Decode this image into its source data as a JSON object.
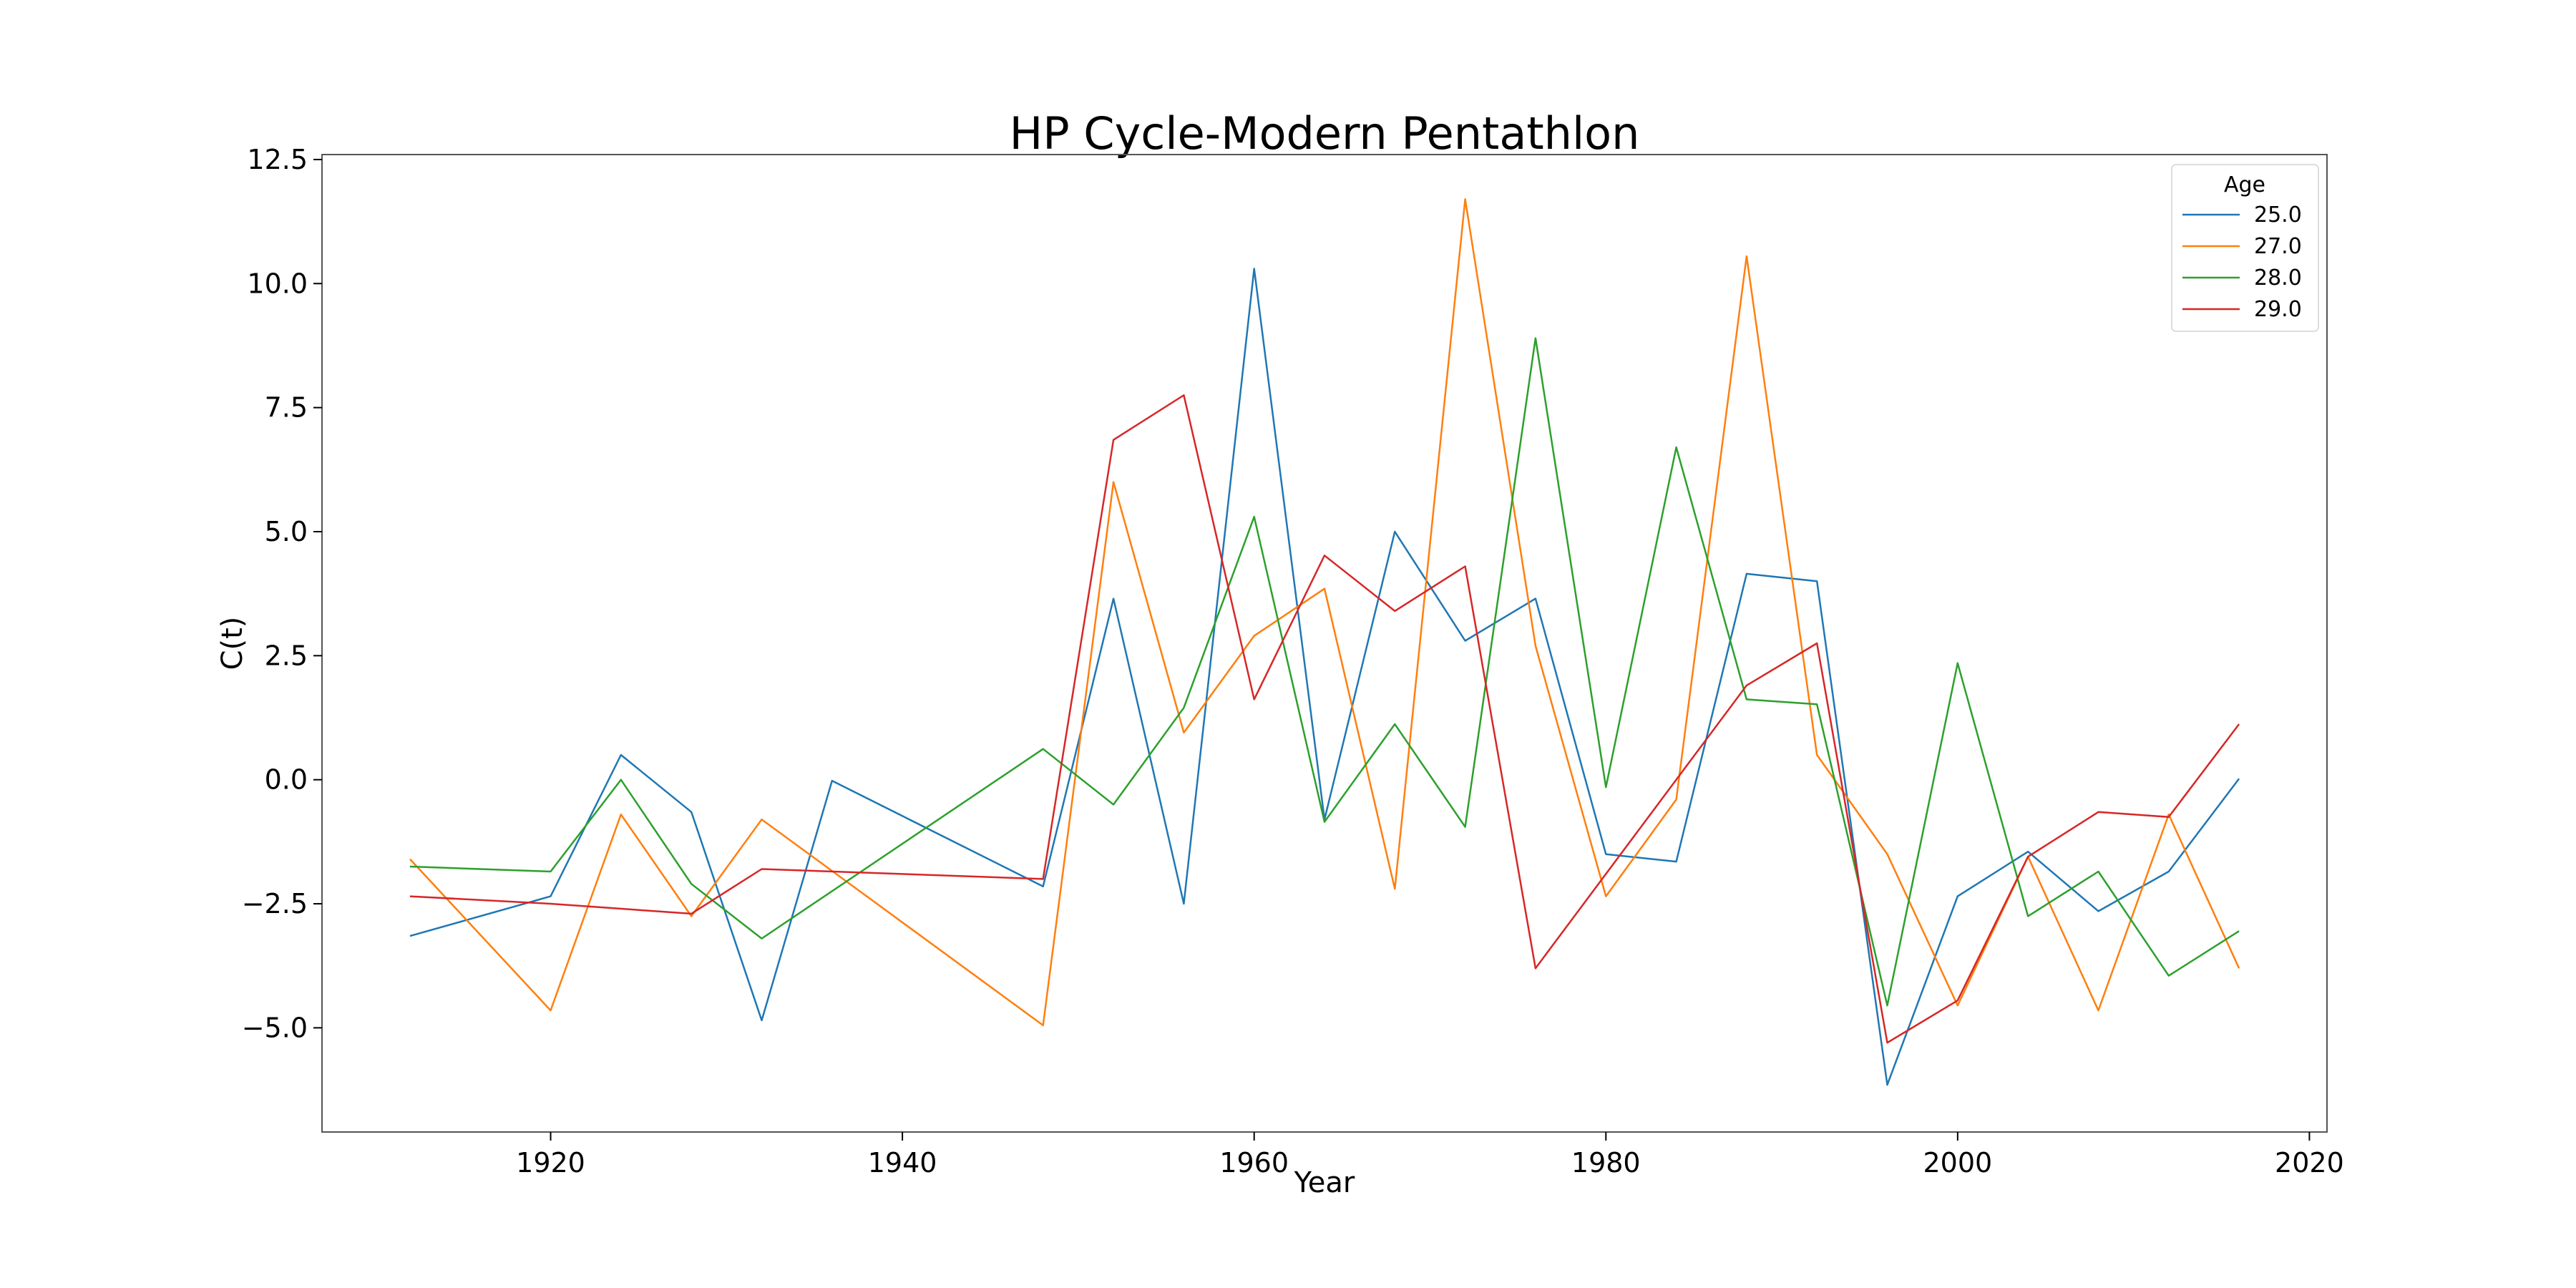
{
  "chart_data": {
    "type": "line",
    "title": "HP Cycle-Modern Pentathlon",
    "xlabel": "Year",
    "ylabel": "C(t)",
    "xlim": [
      1907,
      2021
    ],
    "ylim": [
      -7.1,
      12.6
    ],
    "xticks": [
      1920,
      1940,
      1960,
      1980,
      2000,
      2020
    ],
    "yticks": [
      -5.0,
      -2.5,
      0.0,
      2.5,
      5.0,
      7.5,
      10.0,
      12.5
    ],
    "xtick_labels": [
      "1920",
      "1940",
      "1960",
      "1980",
      "2000",
      "2020"
    ],
    "ytick_labels": [
      "−5.0",
      "−2.5",
      "0.0",
      "2.5",
      "5.0",
      "7.5",
      "10.0",
      "12.5"
    ],
    "grid": false,
    "legend": {
      "title": "Age",
      "placement": "top-right"
    },
    "x": [
      1912,
      1920,
      1924,
      1928,
      1932,
      1936,
      1948,
      1952,
      1956,
      1960,
      1964,
      1968,
      1972,
      1976,
      1980,
      1984,
      1988,
      1992,
      1996,
      2000,
      2004,
      2008,
      2012,
      2016
    ],
    "series": [
      {
        "name": "25.0",
        "color": "#1f77b4",
        "values": [
          -3.15,
          -2.35,
          0.5,
          -0.65,
          -4.85,
          -0.02,
          -2.15,
          3.65,
          -2.5,
          10.3,
          -0.8,
          5.0,
          2.8,
          3.65,
          -1.5,
          -1.65,
          4.15,
          4.0,
          -6.15,
          -2.35,
          -1.45,
          -2.65,
          -1.85,
          0.02
        ]
      },
      {
        "name": "27.0",
        "color": "#ff7f0e",
        "values": [
          -1.6,
          -4.65,
          -0.7,
          -2.75,
          -0.8,
          null,
          -4.95,
          6.0,
          0.95,
          2.9,
          3.85,
          -2.2,
          11.7,
          2.7,
          -2.35,
          -0.4,
          10.55,
          0.5,
          -1.5,
          -4.55,
          -1.55,
          -4.65,
          -0.7,
          -3.8
        ]
      },
      {
        "name": "28.0",
        "color": "#2ca02c",
        "values": [
          -1.75,
          -1.85,
          0.0,
          -2.1,
          -3.2,
          null,
          0.62,
          -0.5,
          1.45,
          5.3,
          -0.85,
          1.12,
          -0.95,
          8.9,
          -0.15,
          6.7,
          1.62,
          1.52,
          -4.55,
          2.35,
          -2.75,
          -1.85,
          -3.95,
          -3.05
        ]
      },
      {
        "name": "29.0",
        "color": "#d62728",
        "values": [
          -2.35,
          -2.5,
          null,
          -2.7,
          -1.8,
          null,
          -2.0,
          6.85,
          7.75,
          1.62,
          4.52,
          3.4,
          4.3,
          -3.8,
          null,
          null,
          1.9,
          2.75,
          -5.3,
          -4.45,
          -1.55,
          -0.65,
          -0.75,
          1.12
        ]
      }
    ]
  }
}
